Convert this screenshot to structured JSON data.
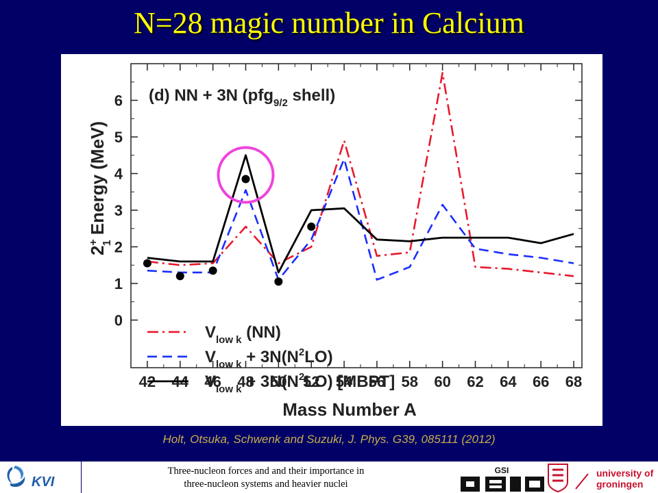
{
  "slide": {
    "title": "N=28 magic number in Calcium",
    "citation": "Holt, Otsuka, Schwenk and Suzuki, J. Phys. G39, 085111 (2012)",
    "footer_line1": "Three-nucleon forces and and their importance in",
    "footer_line2": "three-nucleon systems and heavier nuclei",
    "logos": {
      "left": "KVI",
      "middle": "GSI",
      "right_line1": "university of",
      "right_line2": "groningen"
    }
  },
  "colors": {
    "background": "#000066",
    "title": "#ffff00",
    "citation": "#c8ae4c",
    "highlight_circle": "#ee44dd",
    "vlowk_nn": "#e8192c",
    "vlowk_3n": "#1a2dff",
    "vlowk_3n_mbpt": "#000000",
    "experiment": "#000000"
  },
  "chart_data": {
    "type": "line",
    "panel_label": "(d) NN + 3N (pfg",
    "panel_label_sub": "9/2",
    "panel_label_end": " shell)",
    "xlabel": "Mass Number A",
    "ylabel": {
      "base": "2",
      "sup": "+",
      "sub": "1",
      "rest": " Energy (MeV)"
    },
    "x": [
      42,
      44,
      46,
      48,
      50,
      52,
      54,
      56,
      58,
      60,
      62,
      64,
      66,
      68
    ],
    "xticks": [
      42,
      44,
      46,
      48,
      50,
      52,
      54,
      56,
      58,
      60,
      62,
      64,
      66,
      68
    ],
    "yticks": [
      0,
      1,
      2,
      3,
      4,
      5,
      6
    ],
    "xlim": [
      41,
      68.5
    ],
    "ylim": [
      -1.3,
      7.0
    ],
    "grid": false,
    "legend_position": "bottom-left",
    "series": [
      {
        "key": "nn",
        "name_main": "V",
        "name_sub": "low k",
        "name_rest": " (NN)",
        "style": "dashdot",
        "values": [
          1.6,
          1.5,
          1.55,
          2.55,
          1.55,
          2.0,
          4.9,
          1.75,
          1.85,
          6.75,
          1.45,
          1.4,
          1.3,
          1.2
        ]
      },
      {
        "key": "nn3n",
        "name_main": "V",
        "name_sub": "low k",
        "name_mid": " + 3N(N",
        "name_sup": "2",
        "name_rest": "LO)",
        "style": "dashed",
        "values": [
          1.35,
          1.3,
          1.3,
          3.55,
          1.1,
          2.2,
          4.4,
          1.1,
          1.45,
          3.15,
          1.95,
          1.8,
          1.7,
          1.55
        ]
      },
      {
        "key": "mbpt",
        "name_main": "V",
        "name_sub": "low k",
        "name_mid": " + 3N(N",
        "name_sup": "2",
        "name_rest": "LO) [MBPT]",
        "style": "solid",
        "values": [
          1.7,
          1.6,
          1.6,
          4.5,
          1.3,
          3.0,
          3.05,
          2.2,
          2.15,
          2.25,
          2.25,
          2.25,
          2.1,
          2.35
        ]
      }
    ],
    "experiment": {
      "x": [
        42,
        44,
        46,
        48,
        50,
        52
      ],
      "y": [
        1.55,
        1.2,
        1.35,
        3.85,
        1.05,
        2.55
      ]
    },
    "highlight_x": 48,
    "highlight_y": 3.85
  }
}
